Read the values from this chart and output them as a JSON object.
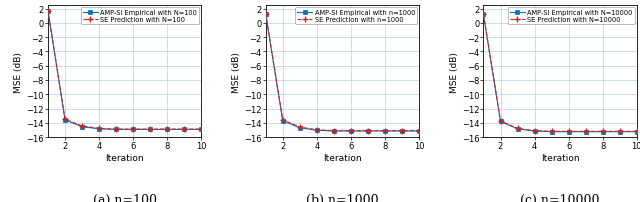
{
  "subplots": [
    {
      "label": "(a) n=100",
      "legend_empirical": "AMP-SI Empirical with N=100",
      "legend_se": "SE Prediction with N=100",
      "empirical_x": [
        1,
        2,
        3,
        4,
        5,
        6,
        7,
        8,
        9,
        10
      ],
      "empirical_y": [
        1.7,
        -13.6,
        -14.55,
        -14.85,
        -14.93,
        -14.93,
        -14.93,
        -14.93,
        -14.93,
        -14.93
      ],
      "se_x": [
        1,
        2,
        3,
        4,
        5,
        6,
        7,
        8,
        9,
        10
      ],
      "se_y": [
        1.7,
        -13.5,
        -14.45,
        -14.78,
        -14.88,
        -14.88,
        -14.88,
        -14.88,
        -14.88,
        -14.88
      ]
    },
    {
      "label": "(b) n=1000",
      "legend_empirical": "AMP-SI Empirical with n=1000",
      "legend_se": "SE Prediction with n=1000",
      "empirical_x": [
        1,
        2,
        3,
        4,
        5,
        6,
        7,
        8,
        9,
        10
      ],
      "empirical_y": [
        1.2,
        -13.7,
        -14.7,
        -15.05,
        -15.15,
        -15.15,
        -15.15,
        -15.15,
        -15.15,
        -15.15
      ],
      "se_x": [
        1,
        2,
        3,
        4,
        5,
        6,
        7,
        8,
        9,
        10
      ],
      "se_y": [
        1.2,
        -13.6,
        -14.6,
        -14.98,
        -15.1,
        -15.1,
        -15.1,
        -15.1,
        -15.1,
        -15.1
      ]
    },
    {
      "label": "(c) n=10000",
      "legend_empirical": "AMP-SI Empirical with N=10000",
      "legend_se": "SE Prediction with N=10000",
      "empirical_x": [
        1,
        2,
        3,
        4,
        5,
        6,
        7,
        8,
        9,
        10
      ],
      "empirical_y": [
        1.2,
        -13.8,
        -14.85,
        -15.15,
        -15.25,
        -15.25,
        -15.25,
        -15.25,
        -15.25,
        -15.25
      ],
      "se_x": [
        1,
        2,
        3,
        4,
        5,
        6,
        7,
        8,
        9,
        10
      ],
      "se_y": [
        1.2,
        -13.75,
        -14.8,
        -15.1,
        -15.2,
        -15.2,
        -15.2,
        -15.2,
        -15.2,
        -15.2
      ]
    }
  ],
  "ylim": [
    -16,
    2.5
  ],
  "xlim": [
    1,
    10
  ],
  "yticks": [
    2,
    0,
    -2,
    -4,
    -6,
    -8,
    -10,
    -12,
    -14,
    -16
  ],
  "xticks": [
    2,
    4,
    6,
    8,
    10
  ],
  "ylabel": "MSE (dB)",
  "xlabel": "Iteration",
  "empirical_color": "#0072BD",
  "se_color": "#D02020",
  "background_color": "#ffffff",
  "grid_color": "#b8cfe4",
  "label_fontsize": 6.5,
  "tick_fontsize": 6,
  "legend_fontsize": 4.8,
  "caption_fontsize": 9
}
